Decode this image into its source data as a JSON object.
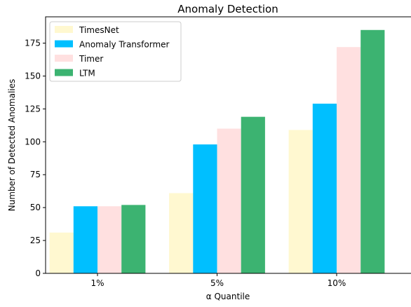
{
  "chart_data": {
    "type": "bar",
    "title": "Anomaly Detection",
    "xlabel": "α Quantile",
    "ylabel": "Number of Detected Anomalies",
    "categories": [
      "1%",
      "5%",
      "10%"
    ],
    "ylim": [
      0,
      195
    ],
    "yticks": [
      0,
      25,
      50,
      75,
      100,
      125,
      150,
      175
    ],
    "grid": false,
    "legend_position": "top-left",
    "series": [
      {
        "name": "TimesNet",
        "color": "#FFF8D0",
        "values": [
          31,
          61,
          109
        ]
      },
      {
        "name": "Anomaly Transformer",
        "color": "#00BFFF",
        "values": [
          51,
          98,
          129
        ]
      },
      {
        "name": "Timer",
        "color": "#FFE0E0",
        "values": [
          51,
          110,
          172
        ]
      },
      {
        "name": "LTM",
        "color": "#3CB371",
        "values": [
          52,
          119,
          185
        ]
      }
    ]
  }
}
